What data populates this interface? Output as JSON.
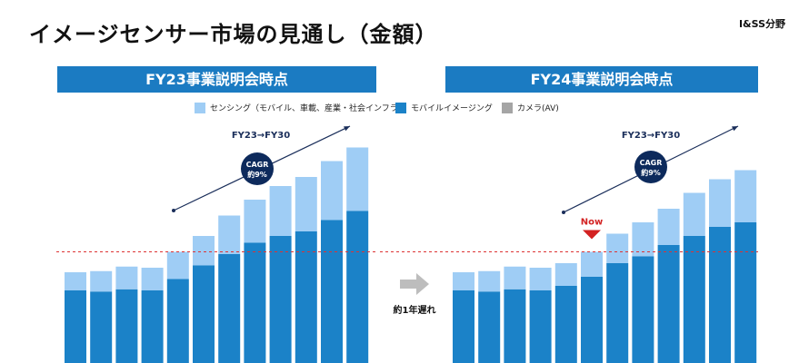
{
  "page": {
    "title": "イメージセンサー市場の見通し（金額）",
    "corner_label": "I&SS分野"
  },
  "legend": [
    {
      "label": "センシング（モバイル、車載、産業・社会インフラ）",
      "color": "#9fcdf5"
    },
    {
      "label": "モバイルイメージング",
      "color": "#1b82c8"
    },
    {
      "label": "カメラ(AV)",
      "color": "#a5a5a5"
    }
  ],
  "middle": {
    "arrow_color": "#bdbdbd",
    "label": "約1年遅れ"
  },
  "chart_data": [
    {
      "type": "bar",
      "title": "FY23事業説明会時点",
      "stacked": true,
      "categories": [
        "",
        "",
        "",
        "",
        "",
        "",
        "",
        "",
        "",
        "",
        "",
        ""
      ],
      "series": [
        {
          "name": "モバイルイメージング",
          "color": "#1b82c8",
          "values": [
            32,
            31.5,
            32.5,
            32,
            37,
            43,
            48,
            53,
            56,
            58,
            63,
            67
          ]
        },
        {
          "name": "センシング（モバイル、車載、産業・社会インフラ）",
          "color": "#9fcdf5",
          "values": [
            8,
            9,
            10,
            10,
            12,
            13,
            17,
            19,
            22,
            24,
            26,
            28
          ]
        }
      ],
      "reference_line": 49,
      "trend_label": "FY23→FY30",
      "cagr_label": "CAGR",
      "cagr_value": "約9%",
      "ylim": [
        0,
        110
      ]
    },
    {
      "type": "bar",
      "title": "FY24事業説明会時点",
      "stacked": true,
      "categories": [
        "",
        "",
        "",
        "",
        "",
        "",
        "",
        "",
        "",
        "",
        "",
        ""
      ],
      "series": [
        {
          "name": "モバイルイメージング",
          "color": "#1b82c8",
          "values": [
            32,
            31.5,
            32.5,
            32,
            34,
            38,
            44,
            47,
            52,
            56,
            60,
            62
          ]
        },
        {
          "name": "センシング（モバイル、車載、産業・社会インフラ）",
          "color": "#9fcdf5",
          "values": [
            8,
            9,
            10,
            10,
            10,
            11,
            13,
            15,
            16,
            19,
            21,
            23
          ]
        }
      ],
      "reference_line": 49,
      "now_label": "Now",
      "now_index": 5,
      "now_color": "#d32222",
      "trend_label": "FY23→FY30",
      "cagr_label": "CAGR",
      "cagr_value": "約9%",
      "ylim": [
        0,
        110
      ]
    }
  ]
}
